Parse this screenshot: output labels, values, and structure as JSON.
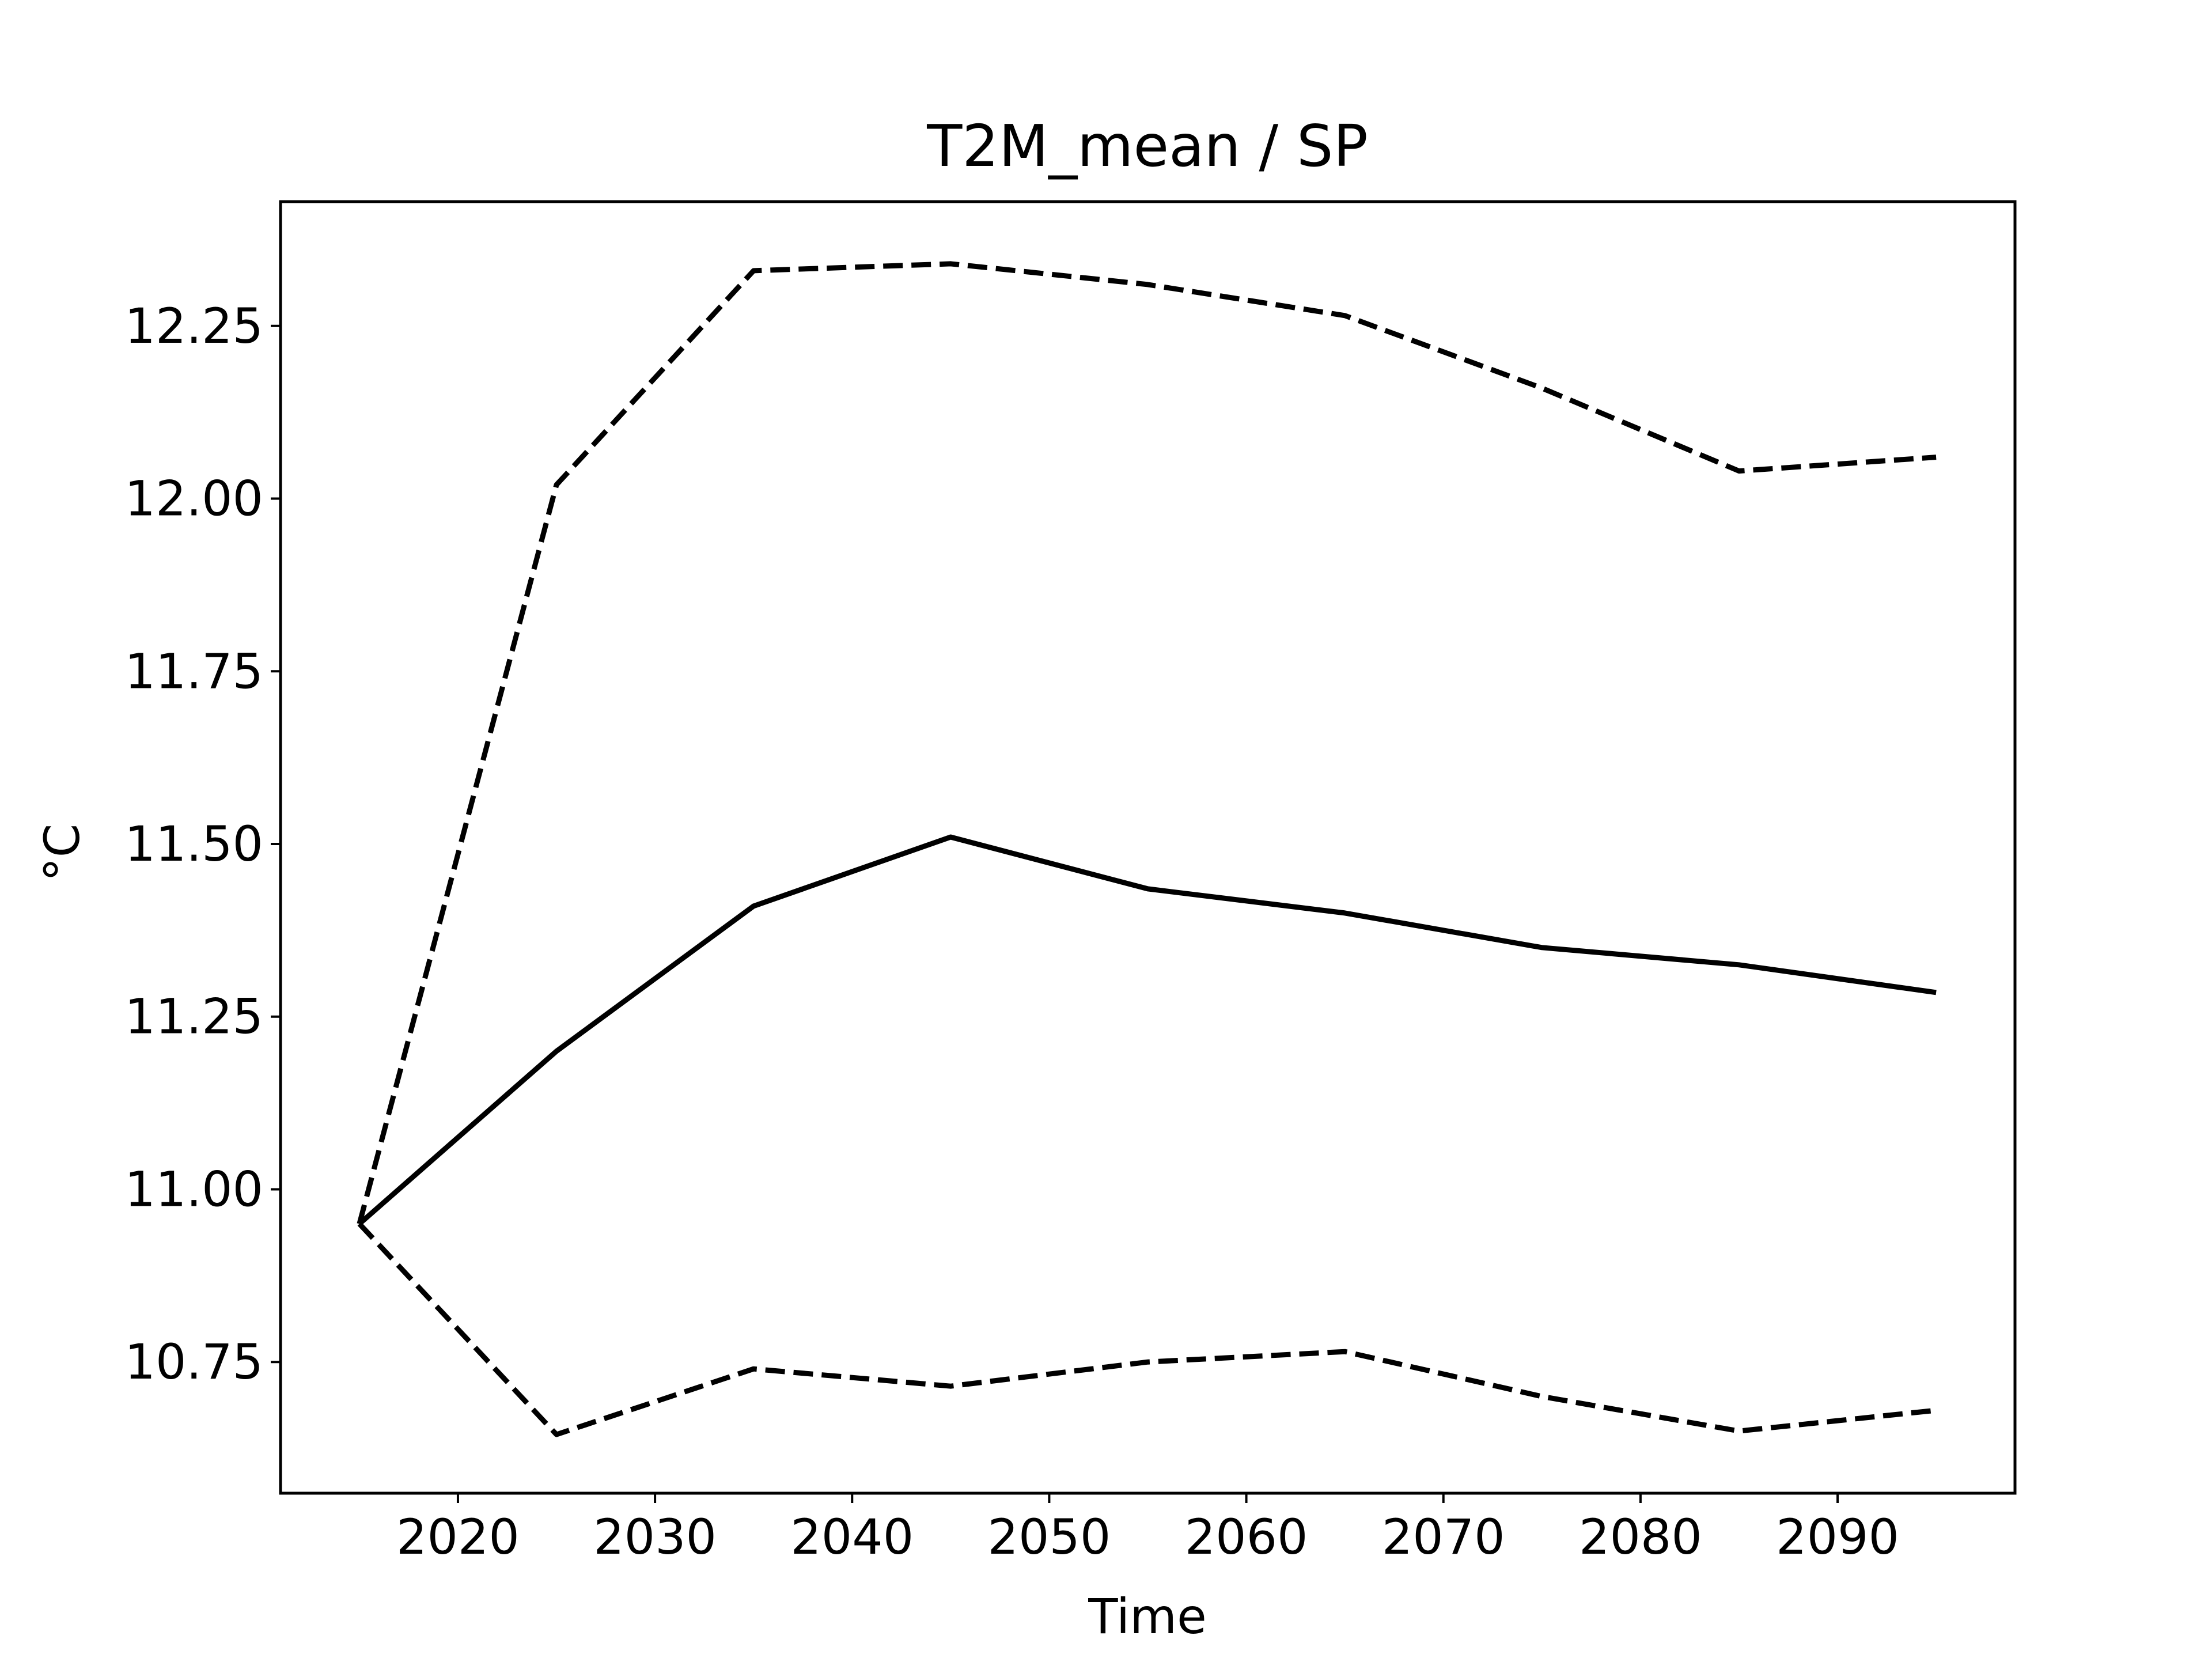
{
  "chart_data": {
    "type": "line",
    "title": "T2M_mean / SP",
    "xlabel": "Time",
    "ylabel": "°C",
    "xlim": [
      2011,
      2099
    ],
    "ylim": [
      10.56,
      12.43
    ],
    "x_ticks": [
      2020,
      2030,
      2040,
      2050,
      2060,
      2070,
      2080,
      2090
    ],
    "y_ticks": [
      10.75,
      11.0,
      11.25,
      11.5,
      11.75,
      12.0,
      12.25
    ],
    "y_tick_labels": [
      "10.75",
      "11.00",
      "11.25",
      "11.50",
      "11.75",
      "12.00",
      "12.25"
    ],
    "grid": false,
    "legend": false,
    "x": [
      2015,
      2025,
      2035,
      2045,
      2055,
      2065,
      2075,
      2085,
      2095
    ],
    "series": [
      {
        "style": "solid",
        "color": "#000000",
        "values": [
          10.95,
          11.2,
          11.41,
          11.51,
          11.435,
          11.4,
          11.35,
          11.325,
          11.285
        ]
      },
      {
        "style": "dashed",
        "color": "#000000",
        "values": [
          10.95,
          12.02,
          12.33,
          12.34,
          12.31,
          12.265,
          12.16,
          12.04,
          12.06
        ]
      },
      {
        "style": "dashed",
        "color": "#000000",
        "values": [
          10.95,
          10.645,
          10.74,
          10.715,
          10.75,
          10.765,
          10.7,
          10.65,
          10.68
        ]
      }
    ]
  }
}
